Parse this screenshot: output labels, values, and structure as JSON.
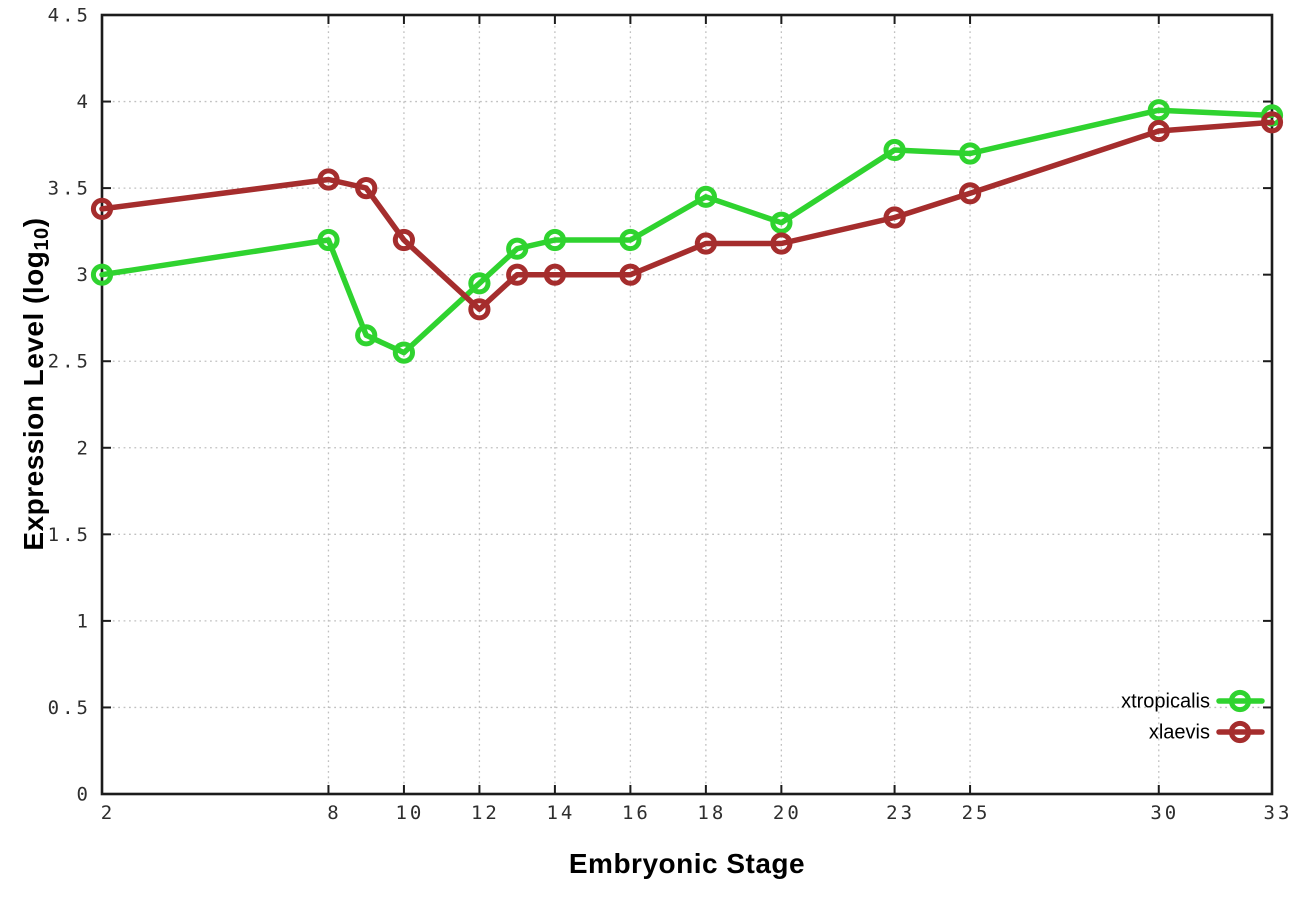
{
  "page": {
    "background": "#ffffff"
  },
  "chart_data": {
    "type": "line",
    "title": "",
    "xlabel": "Embryonic Stage",
    "ylabel": "Expression Level (log10)",
    "ylabel_main": "Expression Level (log",
    "ylabel_sub": "10",
    "ylabel_suffix": ")",
    "x": [
      2,
      8,
      9,
      10,
      12,
      13,
      14,
      16,
      18,
      20,
      23,
      25,
      30,
      33
    ],
    "series": [
      {
        "name": "xtropicalis",
        "color": "#2fd32f",
        "values": [
          3.0,
          3.2,
          2.65,
          2.55,
          2.95,
          3.15,
          3.2,
          3.2,
          3.45,
          3.3,
          3.72,
          3.7,
          3.95,
          3.92
        ]
      },
      {
        "name": "xlaevis",
        "color": "#a52d2d",
        "values": [
          3.38,
          3.55,
          3.5,
          3.2,
          2.8,
          3.0,
          3.0,
          3.0,
          3.18,
          3.18,
          3.33,
          3.47,
          3.83,
          3.88
        ]
      }
    ],
    "xticks": [
      "2",
      "8",
      "10",
      "12",
      "14",
      "16",
      "18",
      "20",
      "23",
      "25",
      "30",
      "33"
    ],
    "yticks": [
      "0",
      "0.5",
      "1",
      "1.5",
      "2",
      "2.5",
      "3",
      "3.5",
      "4",
      "4.5"
    ],
    "xlim": [
      2,
      33
    ],
    "ylim": [
      0,
      4.5
    ],
    "grid": true,
    "legend_position": "bottom-right",
    "legend": [
      "xtropicalis",
      "xlaevis"
    ]
  },
  "style": {
    "grid_color": "#c0c0c0",
    "axis_color": "#1c1c1c",
    "tick_label_color": "#2e2e2e",
    "legend_text_color": "#000000"
  }
}
